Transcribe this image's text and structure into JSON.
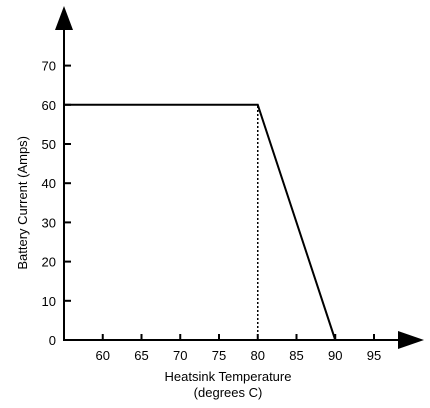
{
  "chart_data": {
    "type": "line",
    "xlabel": [
      "Heatsink Temperature",
      "(degrees C)"
    ],
    "ylabel": "Battery Current (Amps)",
    "xlim": [
      55,
      100
    ],
    "ylim": [
      0,
      80
    ],
    "xticks": [
      60,
      65,
      70,
      75,
      80,
      85,
      90,
      95
    ],
    "yticks": [
      0,
      10,
      20,
      30,
      40,
      50,
      60,
      70
    ],
    "grid": false,
    "series": [
      {
        "x": [
          55,
          80,
          90
        ],
        "y": [
          60,
          60,
          0
        ]
      }
    ],
    "reference_lines": [
      {
        "style": "dotted",
        "x": [
          80,
          80
        ],
        "y": [
          0,
          60
        ]
      }
    ]
  }
}
